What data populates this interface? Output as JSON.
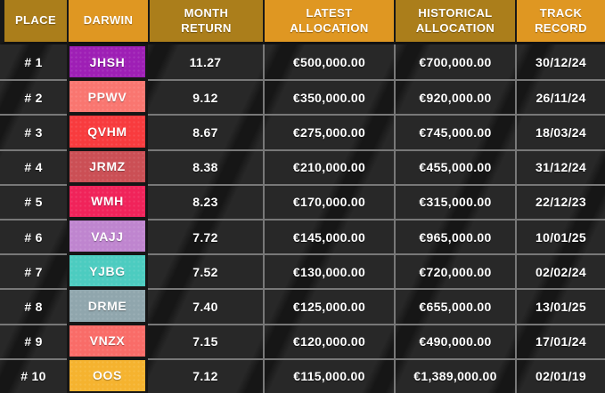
{
  "table": {
    "columns": [
      {
        "key": "place",
        "label": "PLACE"
      },
      {
        "key": "darwin",
        "label": "DARWIN"
      },
      {
        "key": "month_return",
        "label": "MONTH\nRETURN"
      },
      {
        "key": "latest_allocation",
        "label": "LATEST\nALLOCATION"
      },
      {
        "key": "historical_allocation",
        "label": "HISTORICAL\nALLOCATION"
      },
      {
        "key": "track_record",
        "label": "TRACK\nRECORD"
      }
    ],
    "rows": [
      {
        "place": "# 1",
        "darwin": "JHSH",
        "badge_color": "#9e1fb5",
        "month_return": "11.27",
        "latest_allocation": "€500,000.00",
        "historical_allocation": "€700,000.00",
        "track_record": "30/12/24"
      },
      {
        "place": "# 2",
        "darwin": "PPWV",
        "badge_color": "#f97670",
        "month_return": "9.12",
        "latest_allocation": "€350,000.00",
        "historical_allocation": "€920,000.00",
        "track_record": "26/11/24"
      },
      {
        "place": "# 3",
        "darwin": "QVHM",
        "badge_color": "#f83b3e",
        "month_return": "8.67",
        "latest_allocation": "€275,000.00",
        "historical_allocation": "€745,000.00",
        "track_record": "18/03/24"
      },
      {
        "place": "# 4",
        "darwin": "JRMZ",
        "badge_color": "#cb4f55",
        "month_return": "8.38",
        "latest_allocation": "€210,000.00",
        "historical_allocation": "€455,000.00",
        "track_record": "31/12/24"
      },
      {
        "place": "# 5",
        "darwin": "WMH",
        "badge_color": "#f0235a",
        "month_return": "8.23",
        "latest_allocation": "€170,000.00",
        "historical_allocation": "€315,000.00",
        "track_record": "22/12/23"
      },
      {
        "place": "# 6",
        "darwin": "VAJJ",
        "badge_color": "#bf85cf",
        "month_return": "7.72",
        "latest_allocation": "€145,000.00",
        "historical_allocation": "€965,000.00",
        "track_record": "10/01/25"
      },
      {
        "place": "# 7",
        "darwin": "YJBG",
        "badge_color": "#4cccc0",
        "month_return": "7.52",
        "latest_allocation": "€130,000.00",
        "historical_allocation": "€720,000.00",
        "track_record": "02/02/24"
      },
      {
        "place": "# 8",
        "darwin": "DRME",
        "badge_color": "#90a6ad",
        "month_return": "7.40",
        "latest_allocation": "€125,000.00",
        "historical_allocation": "€655,000.00",
        "track_record": "13/01/25"
      },
      {
        "place": "# 9",
        "darwin": "VNZX",
        "badge_color": "#f96c68",
        "month_return": "7.15",
        "latest_allocation": "€120,000.00",
        "historical_allocation": "€490,000.00",
        "track_record": "17/01/24"
      },
      {
        "place": "# 10",
        "darwin": "OOS",
        "badge_color": "#f5b32f",
        "month_return": "7.12",
        "latest_allocation": "€115,000.00",
        "historical_allocation": "€1,389,000.00",
        "track_record": "02/01/19"
      }
    ]
  },
  "colors": {
    "header_dark_gold": "#ab7e1b",
    "header_light_orange": "#df9722",
    "body_background": "#282828",
    "grid_line": "#787878",
    "text": "#ffffff"
  }
}
